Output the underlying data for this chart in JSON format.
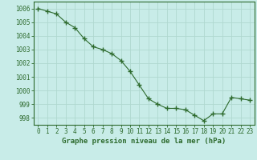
{
  "x": [
    0,
    1,
    2,
    3,
    4,
    5,
    6,
    7,
    8,
    9,
    10,
    11,
    12,
    13,
    14,
    15,
    16,
    17,
    18,
    19,
    20,
    21,
    22,
    23
  ],
  "y": [
    1006.0,
    1005.8,
    1005.6,
    1005.0,
    1004.6,
    1003.8,
    1003.2,
    1003.0,
    1002.7,
    1002.2,
    1001.4,
    1000.4,
    999.4,
    999.0,
    998.7,
    998.7,
    998.6,
    998.2,
    997.8,
    998.3,
    998.3,
    999.5,
    999.4,
    999.3
  ],
  "line_color": "#2d6a2d",
  "marker": "+",
  "marker_size": 4,
  "marker_lw": 1.0,
  "bg_color": "#c8ece8",
  "grid_color": "#b0d8d0",
  "ylabel_ticks": [
    998,
    999,
    1000,
    1001,
    1002,
    1003,
    1004,
    1005,
    1006
  ],
  "ylim": [
    997.5,
    1006.5
  ],
  "xlim": [
    -0.5,
    23.5
  ],
  "xlabel": "Graphe pression niveau de la mer (hPa)",
  "xlabel_color": "#2d6a2d",
  "tick_color": "#2d6a2d",
  "spine_color": "#2d6a2d",
  "tick_fontsize": 5.5,
  "xlabel_fontsize": 6.5
}
